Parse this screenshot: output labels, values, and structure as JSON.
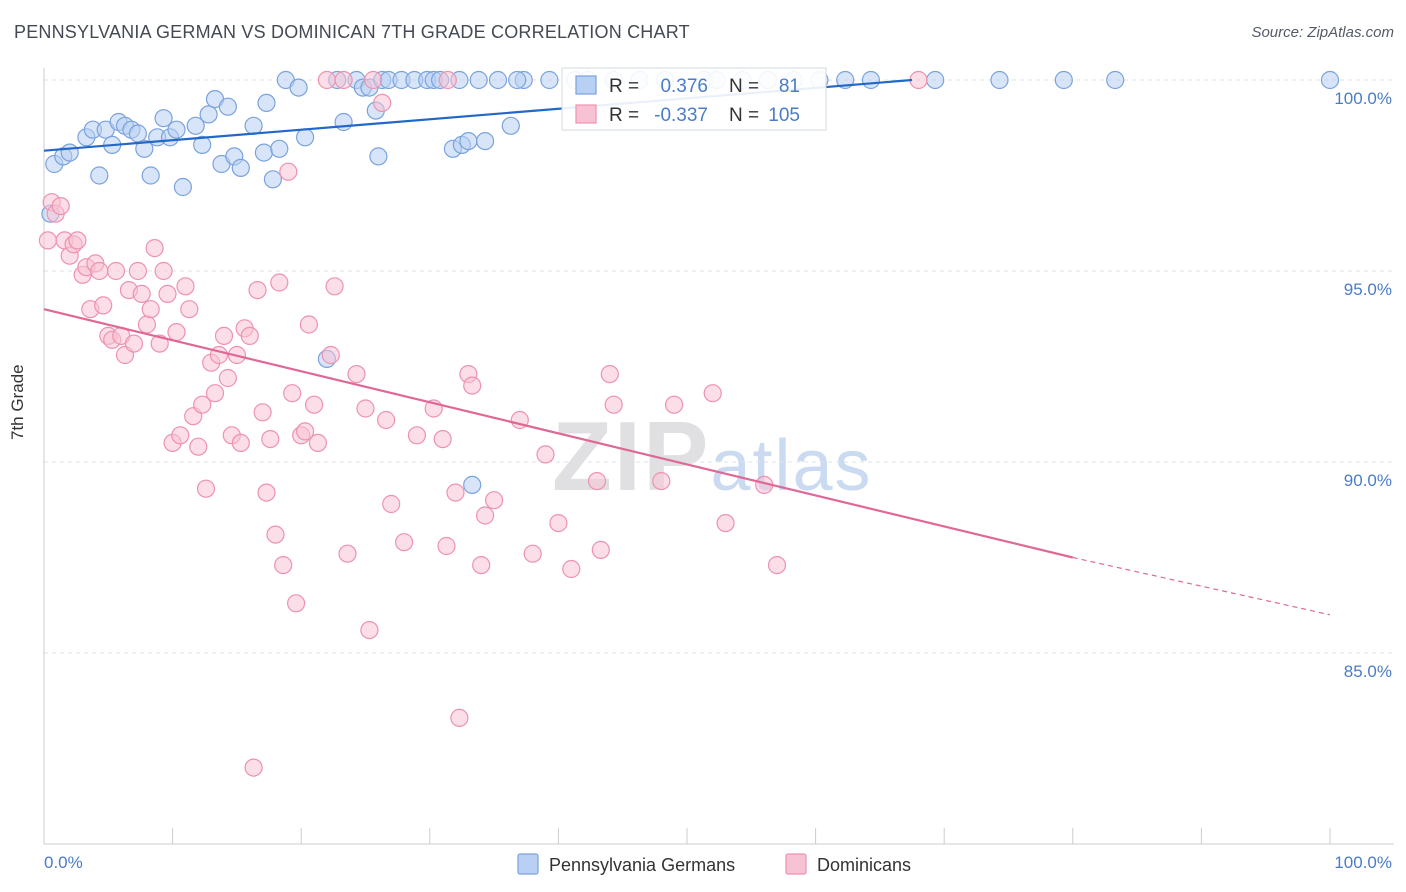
{
  "title": "PENNSYLVANIA GERMAN VS DOMINICAN 7TH GRADE CORRELATION CHART",
  "source": "Source: ZipAtlas.com",
  "watermark": {
    "zip": "ZIP",
    "atlas": "atlas"
  },
  "colors": {
    "blue_fill": "#b8d0f3",
    "blue_stroke": "#7aa3dd",
    "blue_line": "#2368c8",
    "pink_fill": "#f7c3d4",
    "pink_stroke": "#ee92b0",
    "pink_line": "#e06896",
    "tick_label": "#4a7cc7",
    "grid": "#dde3ea"
  },
  "legend_box": {
    "rows": [
      {
        "r_label": "R =",
        "r_value": "0.376",
        "n_label": "N =",
        "n_value": "81",
        "series": "Pennsylvania Germans"
      },
      {
        "r_label": "R =",
        "r_value": "-0.337",
        "n_label": "N =",
        "n_value": "105",
        "series": "Dominicans"
      }
    ]
  },
  "chart_data": {
    "type": "scatter",
    "title": "PENNSYLVANIA GERMAN VS DOMINICAN 7TH GRADE CORRELATION CHART",
    "xlabel": "",
    "ylabel": "7th Grade",
    "xlim": [
      0,
      100
    ],
    "ylim": [
      80.5,
      100.8
    ],
    "x_tick_labels": [
      "0.0%",
      "100.0%"
    ],
    "y_ticks": [
      85,
      90,
      95,
      100
    ],
    "y_tick_labels": [
      "85.0%",
      "90.0%",
      "95.0%",
      "100.0%"
    ],
    "grid": "horizontal dashed",
    "legend_placement": "bottom-center",
    "series": [
      {
        "name": "Pennsylvania Germans",
        "R": 0.376,
        "N": 81,
        "trend": {
          "x": [
            0,
            67.5
          ],
          "y": [
            98.15,
            100.0
          ]
        },
        "points": [
          [
            0.5,
            96.5
          ],
          [
            0.8,
            97.8
          ],
          [
            1.5,
            98.0
          ],
          [
            2.0,
            98.1
          ],
          [
            3.3,
            98.5
          ],
          [
            3.8,
            98.7
          ],
          [
            4.3,
            97.5
          ],
          [
            4.8,
            98.7
          ],
          [
            5.3,
            98.3
          ],
          [
            5.8,
            98.9
          ],
          [
            6.3,
            98.8
          ],
          [
            6.8,
            98.7
          ],
          [
            7.3,
            98.6
          ],
          [
            7.8,
            98.2
          ],
          [
            8.3,
            97.5
          ],
          [
            8.8,
            98.5
          ],
          [
            9.3,
            99.0
          ],
          [
            9.8,
            98.5
          ],
          [
            10.3,
            98.7
          ],
          [
            10.8,
            97.2
          ],
          [
            11.8,
            98.8
          ],
          [
            12.3,
            98.3
          ],
          [
            12.8,
            99.1
          ],
          [
            13.3,
            99.5
          ],
          [
            13.8,
            97.8
          ],
          [
            14.3,
            99.3
          ],
          [
            14.8,
            98.0
          ],
          [
            15.3,
            97.7
          ],
          [
            16.3,
            98.8
          ],
          [
            17.1,
            98.1
          ],
          [
            17.3,
            99.4
          ],
          [
            17.8,
            97.4
          ],
          [
            18.3,
            98.2
          ],
          [
            18.8,
            100.0
          ],
          [
            19.8,
            99.8
          ],
          [
            20.3,
            98.5
          ],
          [
            22.0,
            92.7
          ],
          [
            22.8,
            100.0
          ],
          [
            23.3,
            98.9
          ],
          [
            24.3,
            100.0
          ],
          [
            24.8,
            99.8
          ],
          [
            25.3,
            99.8
          ],
          [
            25.8,
            99.2
          ],
          [
            26.3,
            100.0
          ],
          [
            26.8,
            100.0
          ],
          [
            27.8,
            100.0
          ],
          [
            28.8,
            100.0
          ],
          [
            29.8,
            100.0
          ],
          [
            30.3,
            100.0
          ],
          [
            30.8,
            100.0
          ],
          [
            31.8,
            98.2
          ],
          [
            32.3,
            100.0
          ],
          [
            32.5,
            98.3
          ],
          [
            33.0,
            98.4
          ],
          [
            33.3,
            89.4
          ],
          [
            33.8,
            100.0
          ],
          [
            34.3,
            98.4
          ],
          [
            35.3,
            100.0
          ],
          [
            36.3,
            98.8
          ],
          [
            37.3,
            100.0
          ],
          [
            39.3,
            100.0
          ],
          [
            41.3,
            100.0
          ],
          [
            42.3,
            100.0
          ],
          [
            44.3,
            100.0
          ],
          [
            46.3,
            100.0
          ],
          [
            48.3,
            100.0
          ],
          [
            51.3,
            100.0
          ],
          [
            52.3,
            100.0
          ],
          [
            54.3,
            100.0
          ],
          [
            56.3,
            100.0
          ],
          [
            58.3,
            100.0
          ],
          [
            60.3,
            100.0
          ],
          [
            62.3,
            100.0
          ],
          [
            64.3,
            100.0
          ],
          [
            69.3,
            100.0
          ],
          [
            74.3,
            100.0
          ],
          [
            79.3,
            100.0
          ],
          [
            83.3,
            100.0
          ],
          [
            100.0,
            100.0
          ],
          [
            26.0,
            98.0
          ],
          [
            36.8,
            100.0
          ]
        ]
      },
      {
        "name": "Dominicans",
        "R": -0.337,
        "N": 105,
        "trend": {
          "x": [
            0,
            80
          ],
          "y": [
            94.0,
            87.5
          ]
        },
        "trend_dashed": {
          "x": [
            80,
            100
          ],
          "y": [
            87.5,
            86.0
          ]
        },
        "points": [
          [
            0.3,
            95.8
          ],
          [
            0.6,
            96.8
          ],
          [
            0.9,
            96.5
          ],
          [
            1.3,
            96.7
          ],
          [
            1.6,
            95.8
          ],
          [
            2.0,
            95.4
          ],
          [
            2.3,
            95.7
          ],
          [
            2.6,
            95.8
          ],
          [
            3.0,
            94.9
          ],
          [
            3.3,
            95.1
          ],
          [
            3.6,
            94.0
          ],
          [
            4.0,
            95.2
          ],
          [
            4.3,
            95.0
          ],
          [
            4.6,
            94.1
          ],
          [
            5.0,
            93.3
          ],
          [
            5.3,
            93.2
          ],
          [
            5.6,
            95.0
          ],
          [
            6.0,
            93.3
          ],
          [
            6.3,
            92.8
          ],
          [
            6.6,
            94.5
          ],
          [
            7.0,
            93.1
          ],
          [
            7.3,
            95.0
          ],
          [
            7.6,
            94.4
          ],
          [
            8.0,
            93.6
          ],
          [
            8.3,
            94.0
          ],
          [
            8.6,
            95.6
          ],
          [
            9.0,
            93.1
          ],
          [
            9.3,
            95.0
          ],
          [
            9.6,
            94.4
          ],
          [
            10.0,
            90.5
          ],
          [
            10.3,
            93.4
          ],
          [
            10.6,
            90.7
          ],
          [
            11.0,
            94.6
          ],
          [
            11.3,
            94.0
          ],
          [
            11.6,
            91.2
          ],
          [
            12.0,
            90.4
          ],
          [
            12.3,
            91.5
          ],
          [
            12.6,
            89.3
          ],
          [
            13.0,
            92.6
          ],
          [
            13.3,
            91.8
          ],
          [
            13.6,
            92.8
          ],
          [
            14.0,
            93.3
          ],
          [
            14.3,
            92.2
          ],
          [
            14.6,
            90.7
          ],
          [
            15.0,
            92.8
          ],
          [
            15.3,
            90.5
          ],
          [
            15.6,
            93.5
          ],
          [
            16.0,
            93.3
          ],
          [
            16.3,
            82.0
          ],
          [
            16.6,
            94.5
          ],
          [
            17.0,
            91.3
          ],
          [
            17.3,
            89.2
          ],
          [
            17.6,
            90.6
          ],
          [
            18.0,
            88.1
          ],
          [
            18.3,
            94.7
          ],
          [
            18.6,
            87.3
          ],
          [
            19.0,
            97.6
          ],
          [
            19.3,
            91.8
          ],
          [
            19.6,
            86.3
          ],
          [
            20.0,
            90.7
          ],
          [
            20.3,
            90.8
          ],
          [
            20.6,
            93.6
          ],
          [
            21.0,
            91.5
          ],
          [
            21.3,
            90.5
          ],
          [
            22.0,
            100.0
          ],
          [
            22.3,
            92.8
          ],
          [
            22.6,
            94.6
          ],
          [
            23.3,
            100.0
          ],
          [
            23.6,
            87.6
          ],
          [
            24.3,
            92.3
          ],
          [
            25.0,
            91.4
          ],
          [
            25.3,
            85.6
          ],
          [
            25.6,
            100.0
          ],
          [
            26.3,
            99.4
          ],
          [
            26.6,
            91.1
          ],
          [
            27.0,
            88.9
          ],
          [
            28.0,
            87.9
          ],
          [
            29.0,
            90.7
          ],
          [
            30.3,
            91.4
          ],
          [
            31.0,
            90.6
          ],
          [
            31.3,
            87.8
          ],
          [
            32.0,
            89.2
          ],
          [
            32.3,
            83.3
          ],
          [
            33.0,
            92.3
          ],
          [
            33.3,
            92.0
          ],
          [
            34.0,
            87.3
          ],
          [
            34.3,
            88.6
          ],
          [
            35.0,
            89.0
          ],
          [
            37.0,
            91.1
          ],
          [
            38.0,
            87.6
          ],
          [
            39.0,
            90.2
          ],
          [
            40.0,
            88.4
          ],
          [
            41.0,
            87.2
          ],
          [
            43.0,
            89.5
          ],
          [
            43.3,
            87.7
          ],
          [
            44.0,
            92.3
          ],
          [
            44.3,
            91.5
          ],
          [
            48.0,
            89.5
          ],
          [
            49.0,
            91.5
          ],
          [
            52.0,
            91.8
          ],
          [
            53.0,
            88.4
          ],
          [
            56.0,
            89.4
          ],
          [
            57.0,
            87.3
          ],
          [
            68.0,
            100.0
          ],
          [
            31.4,
            100.0
          ]
        ]
      }
    ]
  }
}
